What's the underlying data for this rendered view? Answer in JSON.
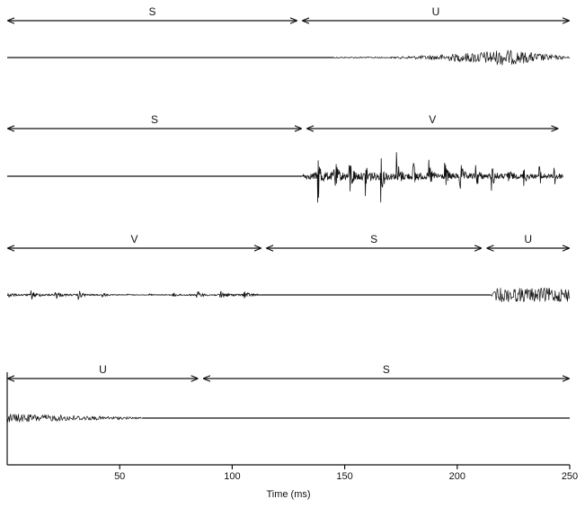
{
  "figure": {
    "colors": {
      "ink": "#111111",
      "background": "#ffffff"
    },
    "x_axis": {
      "label": "Time (ms)",
      "range": [
        0,
        250
      ],
      "ticks": [
        50,
        100,
        150,
        200,
        250
      ]
    },
    "panels": [
      {
        "segments": [
          {
            "label": "S",
            "start": 0,
            "end": 129
          },
          {
            "label": "U",
            "start": 131,
            "end": 250
          }
        ],
        "waveform": [
          {
            "type": "silence",
            "start": 0,
            "end": 145
          },
          {
            "type": "unvoiced",
            "start": 145,
            "end": 250
          }
        ]
      },
      {
        "segments": [
          {
            "label": "S",
            "start": 0,
            "end": 131
          },
          {
            "label": "V",
            "start": 133,
            "end": 245
          }
        ],
        "waveform": [
          {
            "type": "silence",
            "start": 0,
            "end": 131
          },
          {
            "type": "voiced",
            "start": 131,
            "end": 247
          }
        ]
      },
      {
        "segments": [
          {
            "label": "V",
            "start": 0,
            "end": 113
          },
          {
            "label": "S",
            "start": 115,
            "end": 211
          },
          {
            "label": "U",
            "start": 213,
            "end": 250
          }
        ],
        "waveform": [
          {
            "type": "voiced",
            "start": 0,
            "end": 113
          },
          {
            "type": "silence",
            "start": 113,
            "end": 215
          },
          {
            "type": "unvoiced",
            "start": 215,
            "end": 250
          }
        ]
      },
      {
        "segments": [
          {
            "label": "U",
            "start": 0,
            "end": 85
          },
          {
            "label": "S",
            "start": 87,
            "end": 250
          }
        ],
        "waveform": [
          {
            "type": "unvoiced",
            "start": 0,
            "end": 60
          },
          {
            "type": "silence",
            "start": 60,
            "end": 250
          }
        ]
      }
    ]
  }
}
